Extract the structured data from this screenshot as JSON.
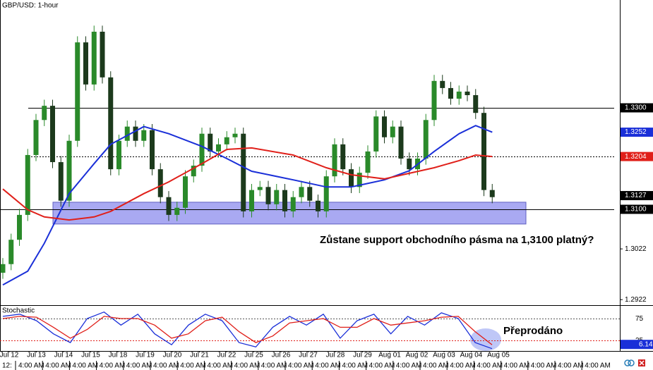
{
  "chart_data": {
    "type": "candlestick",
    "title": "GBP/USD: 1-hour",
    "ylim": [
      1.29111,
      1.35125
    ],
    "up_color": "#2a8a2a",
    "down_color": "#1c3a1c",
    "open": [
      1.2975,
      1.2992,
      1.304,
      1.3089,
      1.3207,
      1.3276,
      1.3304,
      1.3193,
      1.3117,
      1.3235,
      1.3429,
      1.3346,
      1.345,
      1.336,
      1.3179,
      1.3235,
      1.3263,
      1.3235,
      1.3256,
      1.3179,
      1.3124,
      1.3089,
      1.3103,
      1.3165,
      1.3186,
      1.3249,
      1.3214,
      1.3228,
      1.3242,
      1.3249,
      1.3096,
      1.3138,
      1.3144,
      1.311,
      1.3138,
      1.3096,
      1.3124,
      1.3144,
      1.3117,
      1.3096,
      1.3165,
      1.3228,
      1.3179,
      1.3144,
      1.3172,
      1.3214,
      1.3283,
      1.3242,
      1.3263,
      1.32,
      1.3179,
      1.32,
      1.3276,
      1.3353,
      1.3339,
      1.3318,
      1.3332,
      1.3325,
      1.329,
      1.3138
    ],
    "high": [
      1.3004,
      1.3052,
      1.3101,
      1.3219,
      1.3288,
      1.3316,
      1.3316,
      1.3205,
      1.3247,
      1.3441,
      1.3441,
      1.3462,
      1.3462,
      1.3372,
      1.3247,
      1.3275,
      1.3275,
      1.3268,
      1.3268,
      1.3191,
      1.3136,
      1.3115,
      1.3177,
      1.3198,
      1.3261,
      1.3261,
      1.324,
      1.3254,
      1.3261,
      1.3261,
      1.315,
      1.3156,
      1.3156,
      1.315,
      1.315,
      1.3136,
      1.3156,
      1.3156,
      1.3129,
      1.3177,
      1.324,
      1.324,
      1.3191,
      1.3184,
      1.3226,
      1.3295,
      1.3295,
      1.3275,
      1.3275,
      1.3212,
      1.3212,
      1.3288,
      1.3365,
      1.3365,
      1.3351,
      1.3344,
      1.3344,
      1.3337,
      1.3302,
      1.315
    ],
    "low": [
      1.2963,
      1.298,
      1.3028,
      1.3077,
      1.3195,
      1.3264,
      1.3181,
      1.3105,
      1.3105,
      1.3223,
      1.3334,
      1.3334,
      1.3348,
      1.3167,
      1.3167,
      1.3223,
      1.3223,
      1.3223,
      1.3167,
      1.3112,
      1.3077,
      1.3077,
      1.3091,
      1.3153,
      1.3174,
      1.3202,
      1.3202,
      1.3216,
      1.323,
      1.3084,
      1.3084,
      1.3126,
      1.3098,
      1.3098,
      1.3084,
      1.3084,
      1.3112,
      1.3105,
      1.3084,
      1.3084,
      1.3153,
      1.3167,
      1.3132,
      1.3132,
      1.316,
      1.3202,
      1.323,
      1.323,
      1.3188,
      1.3167,
      1.3167,
      1.3188,
      1.3264,
      1.3327,
      1.3306,
      1.3306,
      1.3313,
      1.3278,
      1.3126,
      1.3112
    ],
    "close": [
      1.2992,
      1.304,
      1.3089,
      1.3207,
      1.3276,
      1.3304,
      1.3193,
      1.3117,
      1.3235,
      1.3429,
      1.3346,
      1.345,
      1.336,
      1.3179,
      1.3235,
      1.3263,
      1.3235,
      1.3256,
      1.3179,
      1.3124,
      1.3089,
      1.3103,
      1.3165,
      1.3186,
      1.3249,
      1.3214,
      1.3228,
      1.3242,
      1.3249,
      1.3096,
      1.3138,
      1.3144,
      1.311,
      1.3138,
      1.3096,
      1.3124,
      1.3144,
      1.3117,
      1.3096,
      1.3165,
      1.3228,
      1.3179,
      1.3144,
      1.3172,
      1.3214,
      1.3283,
      1.3242,
      1.3263,
      1.32,
      1.3179,
      1.32,
      1.3276,
      1.3353,
      1.3339,
      1.3318,
      1.3332,
      1.3325,
      1.329,
      1.3138,
      1.3124
    ],
    "series": [
      {
        "color": "#1a2fd8",
        "x": [
          0,
          3,
          5,
          8,
          11,
          13,
          17,
          20,
          24,
          27,
          30,
          35,
          39,
          42,
          46,
          49,
          52,
          55,
          57,
          59
        ],
        "values": [
          1.2951,
          1.2978,
          1.3033,
          1.3131,
          1.319,
          1.3228,
          1.3263,
          1.3249,
          1.3224,
          1.32,
          1.3175,
          1.3158,
          1.3144,
          1.3144,
          1.3158,
          1.3176,
          1.3214,
          1.3249,
          1.3265,
          1.3252
        ]
      },
      {
        "color": "#e0201a",
        "x": [
          0,
          3,
          5,
          8,
          11,
          13,
          17,
          20,
          24,
          27,
          30,
          35,
          39,
          42,
          46,
          49,
          52,
          55,
          57,
          59
        ],
        "values": [
          1.314,
          1.3099,
          1.3085,
          1.3079,
          1.3085,
          1.3096,
          1.3131,
          1.3154,
          1.319,
          1.3218,
          1.3221,
          1.3207,
          1.3182,
          1.3168,
          1.316,
          1.3171,
          1.3182,
          1.3196,
          1.3207,
          1.3204
        ]
      }
    ],
    "levels": [
      {
        "value": 1.33,
        "style": "solid"
      },
      {
        "value": 1.31,
        "style": "solid"
      },
      {
        "value": 1.3204,
        "style": "dotted"
      }
    ],
    "zone": {
      "from": 1.3071,
      "to": 1.3114,
      "color": "#a9a9f2"
    },
    "yticks": [
      {
        "value": 1.3022,
        "label": "1.3022"
      },
      {
        "value": 1.2922,
        "label": "1.2922"
      }
    ],
    "price_tags": [
      {
        "value": 1.33,
        "label": "1.3300",
        "color": "#000000"
      },
      {
        "value": 1.3252,
        "label": "1.3252",
        "color": "#1a2fd8"
      },
      {
        "value": 1.3204,
        "label": "1.3204",
        "color": "#e0201a"
      },
      {
        "value": 1.3127,
        "label": "1.3127",
        "color": "#000000"
      },
      {
        "value": 1.31,
        "label": "1.3100",
        "color": "#000000"
      }
    ],
    "annotations": [
      "Zůstane support obchodního pásma na 1,3100 platný?",
      "Přeprodáno"
    ],
    "dates": [
      "Jul 12",
      "Jul 13",
      "Jul 14",
      "Jul 15",
      "Jul 18",
      "Jul 19",
      "Jul 20",
      "Jul 21",
      "Jul 22",
      "Jul 25",
      "Jul 26",
      "Jul 27",
      "Jul 28",
      "Jul 29",
      "Aug 01",
      "Aug 02",
      "Aug 03",
      "Aug 04",
      "Aug 05"
    ],
    "times": [
      "12:",
      "4:00 AM",
      "4:00 AM",
      "4:00 AM",
      "4:00 AM",
      "4:00 AM",
      "4:00 AM",
      "4:00 AM",
      "4:00 AM",
      "4:00 AM",
      "4:00 AM",
      "4:00 AM",
      "4:00 AM",
      "4:00 AM",
      "4:00 AM",
      "4:00 AM",
      "4:00 AM",
      "4:00 AM",
      "4:00 AM",
      "4:00 AM",
      "4:00 AM",
      "4:00 AM",
      "4:00 AM"
    ],
    "stochastic": {
      "title": "Stochastic",
      "ylim": [
        0,
        100
      ],
      "yticks": [
        75,
        25
      ],
      "series": [
        {
          "color": "#1a2fd8",
          "values": [
            80,
            85,
            70,
            40,
            20,
            75,
            90,
            60,
            85,
            40,
            15,
            60,
            85,
            70,
            20,
            10,
            55,
            80,
            60,
            85,
            30,
            70,
            85,
            40,
            80,
            60,
            88,
            75,
            20,
            6.14
          ]
        },
        {
          "color": "#e0201a",
          "values": [
            75,
            80,
            78,
            55,
            30,
            50,
            80,
            75,
            75,
            60,
            30,
            40,
            70,
            78,
            45,
            20,
            35,
            65,
            70,
            75,
            55,
            55,
            75,
            60,
            65,
            70,
            78,
            80,
            45,
            15
          ]
        }
      ],
      "last_tag": {
        "value": 6.14,
        "color": "#1a2fd8"
      }
    }
  }
}
